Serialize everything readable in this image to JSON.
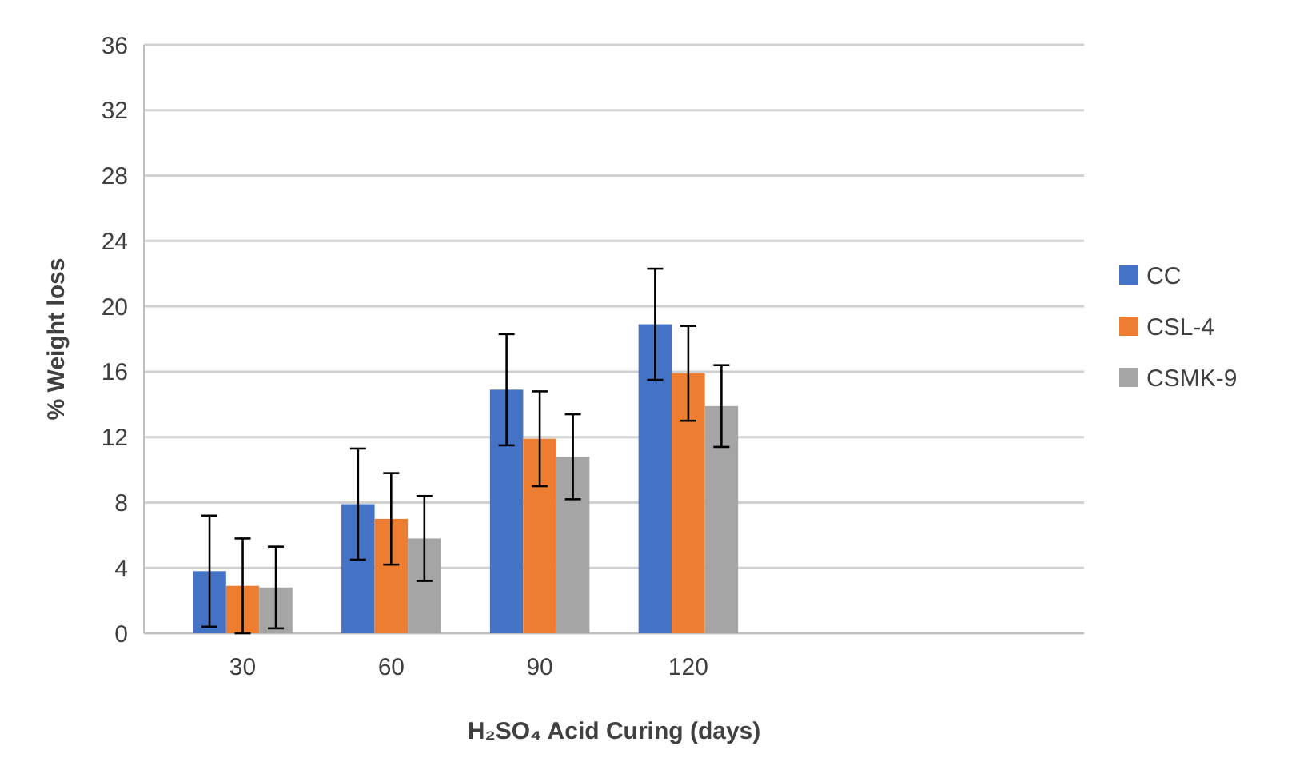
{
  "chart_data": {
    "type": "bar",
    "xlabel": "H₂SO₄   Acid Curing (days)",
    "ylabel": "% Weight loss",
    "categories": [
      "30",
      "60",
      "90",
      "120",
      null,
      null
    ],
    "series": [
      {
        "name": "CC",
        "color": "#4472c4",
        "values": [
          3.8,
          7.9,
          14.9,
          18.9,
          null,
          null
        ],
        "errors": [
          3.4,
          3.4,
          3.4,
          3.4,
          null,
          null
        ]
      },
      {
        "name": "CSL-4",
        "color": "#ed7d31",
        "values": [
          2.9,
          7.0,
          11.9,
          15.9,
          null,
          null
        ],
        "errors": [
          2.9,
          2.8,
          2.9,
          2.9,
          null,
          null
        ]
      },
      {
        "name": "CSMK-9",
        "color": "#a5a5a5",
        "values": [
          2.8,
          5.8,
          10.8,
          13.9,
          null,
          null
        ],
        "errors": [
          2.5,
          2.6,
          2.6,
          2.5,
          null,
          null
        ]
      }
    ],
    "ylim": [
      0,
      36
    ],
    "yticks": [
      0,
      4,
      8,
      12,
      16,
      20,
      24,
      28,
      32,
      36
    ],
    "grid": "y",
    "legend": "right"
  }
}
